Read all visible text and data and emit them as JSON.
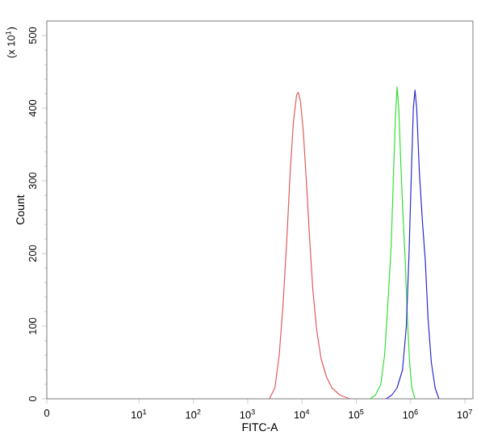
{
  "chart_data": {
    "type": "line",
    "xlabel": "FITC-A",
    "ylabel": "Count",
    "annotations": [
      "(x 10$^{1}$)"
    ],
    "log": "x",
    "xlim": [
      0.2,
      14000000
    ],
    "ylim": [
      0,
      520
    ],
    "xticks": [
      {
        "value": 0.2,
        "label": "0"
      },
      {
        "value": 10,
        "label": "10$^{1}$"
      },
      {
        "value": 100,
        "label": "10$^{2}$"
      },
      {
        "value": 1000,
        "label": "10$^{3}$"
      },
      {
        "value": 10000,
        "label": "10$^{4}$"
      },
      {
        "value": 100000,
        "label": "10$^{5}$"
      },
      {
        "value": 1000000,
        "label": "10$^{6}$"
      },
      {
        "value": 10000000,
        "label": "10$^{7}$"
      }
    ],
    "yticks": [
      0,
      100,
      200,
      300,
      400,
      500
    ],
    "series": [
      {
        "color": "#e05a5a",
        "x": [
          2510,
          3160,
          3800,
          4470,
          5250,
          6030,
          6920,
          7940,
          8510,
          9330,
          10500,
          12000,
          13800,
          15800,
          18600,
          22400,
          28200,
          35500,
          50100,
          75900
        ],
        "values": [
          0,
          15,
          60,
          130,
          220,
          310,
          380,
          418,
          422,
          410,
          370,
          300,
          220,
          150,
          95,
          55,
          30,
          15,
          5,
          0
        ]
      },
      {
        "color": "#33dd33",
        "x": [
          178000,
          224000,
          282000,
          331000,
          380000,
          437000,
          479000,
          525000,
          562000,
          603000,
          661000,
          724000,
          794000,
          871000,
          955000,
          1050000,
          1200000
        ],
        "values": [
          0,
          5,
          20,
          60,
          130,
          210,
          300,
          390,
          429,
          400,
          320,
          250,
          190,
          110,
          50,
          15,
          0
        ]
      },
      {
        "color": "#2a2acc",
        "x": [
          355000,
          447000,
          562000,
          708000,
          832000,
          933000,
          1020000,
          1120000,
          1200000,
          1290000,
          1450000,
          1660000,
          1860000,
          2090000,
          2400000,
          2820000,
          3310000
        ],
        "values": [
          0,
          5,
          15,
          40,
          100,
          200,
          300,
          400,
          425,
          400,
          310,
          240,
          190,
          110,
          50,
          15,
          0
        ]
      }
    ]
  }
}
